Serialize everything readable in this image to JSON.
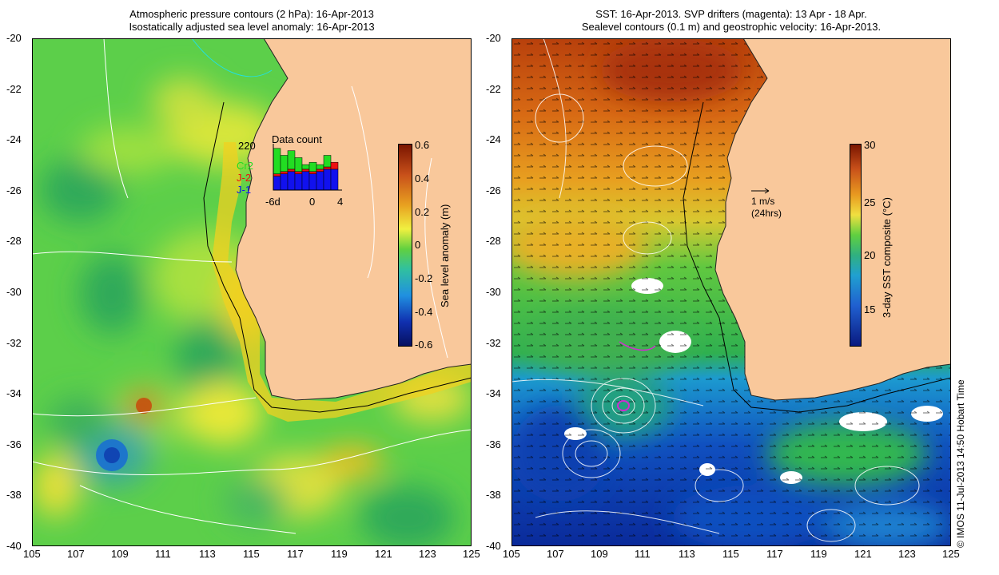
{
  "left_panel": {
    "title_line1": "Atmospheric pressure contours (2 hPa): 16-Apr-2013",
    "title_line2": "Isostatically adjusted sea level anomaly: 16-Apr-2013",
    "inset": {
      "title": "Data count",
      "max_label": "220",
      "legend": [
        {
          "label": "Cr2",
          "color": "#22dd22"
        },
        {
          "label": "J-2",
          "color": "#ee1111"
        },
        {
          "label": "J-1",
          "color": "#1111ee"
        }
      ],
      "x_labels": [
        "-6d",
        "0",
        "4"
      ],
      "bars": [
        {
          "j1": 0.3,
          "j2": 0.05,
          "cr2": 0.55
        },
        {
          "j1": 0.35,
          "j2": 0.05,
          "cr2": 0.35
        },
        {
          "j1": 0.4,
          "j2": 0.05,
          "cr2": 0.4
        },
        {
          "j1": 0.35,
          "j2": 0.05,
          "cr2": 0.3
        },
        {
          "j1": 0.4,
          "j2": 0.05,
          "cr2": 0.1
        },
        {
          "j1": 0.35,
          "j2": 0.05,
          "cr2": 0.2
        },
        {
          "j1": 0.4,
          "j2": 0.05,
          "cr2": 0.1
        },
        {
          "j1": 0.45,
          "j2": 0.05,
          "cr2": 0.25
        },
        {
          "j1": 0.45,
          "j2": 0.15,
          "cr2": 0.0
        }
      ]
    },
    "colorbar": {
      "label": "Sea level anomaly (m)",
      "ticks": [
        "0.6",
        "0.4",
        "0.2",
        "0",
        "-0.2",
        "-0.4",
        "-0.6"
      ]
    }
  },
  "right_panel": {
    "title_line1": "SST: 16-Apr-2013. SVP drifters (magenta): 13 Apr - 18 Apr.",
    "title_line2": "Sealevel contours (0.1 m) and geostrophic velocity: 16-Apr-2013.",
    "velocity_legend": {
      "line1": "1 m/s",
      "line2": "(24hrs)"
    },
    "colorbar": {
      "label": "3-day SST composite (°C)",
      "ticks": [
        "30",
        "25",
        "20",
        "15"
      ]
    }
  },
  "axes": {
    "x_ticks": [
      "105",
      "107",
      "109",
      "111",
      "113",
      "115",
      "117",
      "119",
      "121",
      "123",
      "125"
    ],
    "y_ticks": [
      "-20",
      "-22",
      "-24",
      "-26",
      "-28",
      "-30",
      "-32",
      "-34",
      "-36",
      "-38",
      "-40"
    ]
  },
  "credit": "© IMOS 11-Jul-2013 14:50 Hobart Time",
  "colors": {
    "land": "#f9c89b",
    "sla_green": "#4cc94c",
    "sla_yellow": "#e6e640",
    "sst_hot": "#b23a0a",
    "sst_cold": "#0a2a9a"
  }
}
